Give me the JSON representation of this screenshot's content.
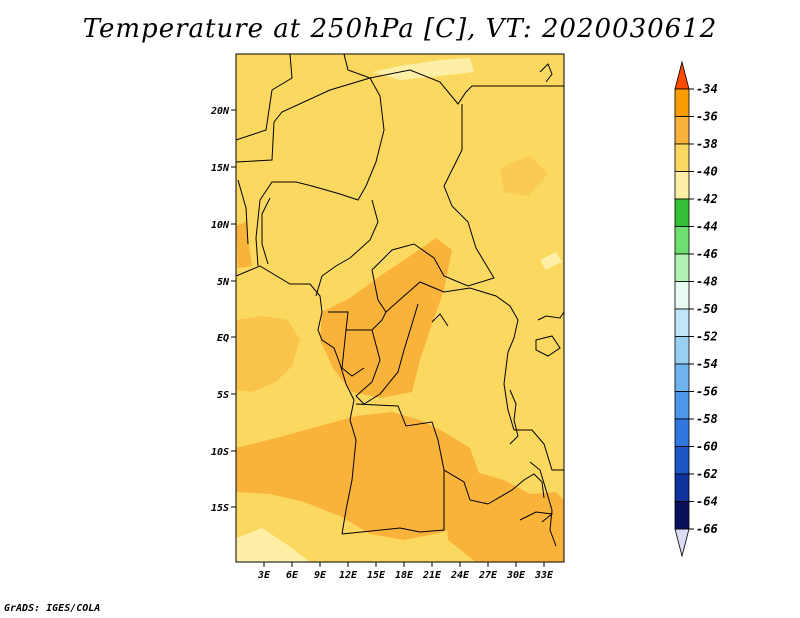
{
  "title": "Temperature at 250hPa [C], VT: 2020030612",
  "credit": "GrADS: IGES/COLA",
  "map": {
    "lat_labels": [
      "20N",
      "15N",
      "10N",
      "5N",
      "EQ",
      "5S",
      "10S",
      "15S"
    ],
    "lon_labels": [
      "3E",
      "6E",
      "9E",
      "12E",
      "15E",
      "18E",
      "21E",
      "24E",
      "27E",
      "30E",
      "33E"
    ],
    "colors": {
      "c_40_38": "#fbd860",
      "c_38_36": "#f9b33a",
      "c_42_40": "#fdefa5",
      "border": "#000000"
    }
  },
  "colorbar": {
    "labels": [
      "-34",
      "-36",
      "-38",
      "-40",
      "-42",
      "-44",
      "-46",
      "-48",
      "-50",
      "-52",
      "-54",
      "-56",
      "-58",
      "-60",
      "-62",
      "-64",
      "-66"
    ],
    "colors": [
      "#f55a00",
      "#f99d00",
      "#f9b33a",
      "#fbd860",
      "#fdefa5",
      "#35c035",
      "#6fe06f",
      "#b3f1b3",
      "#e8fbf3",
      "#bfe7f7",
      "#98d0f2",
      "#6fb4ee",
      "#4c97ea",
      "#2f76de",
      "#1c56c7",
      "#0f329a",
      "#08105c"
    ],
    "top_triangle_color": "#ff4a00",
    "bottom_triangle_color": "#dcdcf5"
  }
}
